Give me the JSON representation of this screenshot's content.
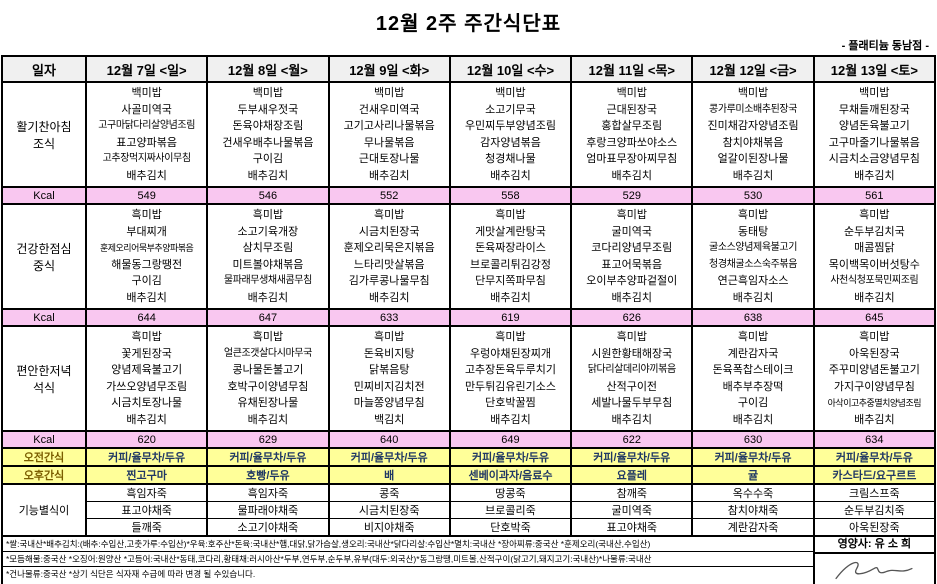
{
  "page": {
    "title": "12월 2주 주간식단표",
    "branch": "- 플래티늄 동남점 -"
  },
  "colors": {
    "kcal_bg": "#F9C7F0",
    "snack_bg": "#FFFF99",
    "header_bg": "#F0F0F0",
    "snack_label": "#7B5E00",
    "snack_value": "#203864"
  },
  "table": {
    "date_label": "일자",
    "kcal_label": "Kcal",
    "days": [
      "12월 7일 <일>",
      "12월 8일 <월>",
      "12월 9일 <화>",
      "12월 10일 <수>",
      "12월 11일 <목>",
      "12월 12일 <금>",
      "12월 13일 <토>"
    ],
    "meals": [
      {
        "label1": "활기찬아침",
        "label2": "조식",
        "menus": [
          [
            "백미밥",
            "사골미역국",
            "고구마닭다리살양념조림",
            "표고양파볶음",
            "고추장먹지짜사이무침",
            "배추김치"
          ],
          [
            "백미밥",
            "두부새우젓국",
            "돈육야채장조림",
            "건새우배추나물볶음",
            "구이김",
            "배추김치"
          ],
          [
            "백미밥",
            "건새우미역국",
            "고기고사리나물볶음",
            "무나물볶음",
            "근대토장나물",
            "배추김치"
          ],
          [
            "백미밥",
            "소고기무국",
            "우민찌두부양념조림",
            "감자양념볶음",
            "청경채나물",
            "배추김치"
          ],
          [
            "백미밥",
            "근대된장국",
            "홍합살무조림",
            "후랑크양파쏘야소스",
            "엄마표무장아찌무침",
            "배추김치"
          ],
          [
            "백미밥",
            "콩가루미소배추된장국",
            "진미채감자양념조림",
            "참치야채볶음",
            "얼갈이된장나물",
            "배추김치"
          ],
          [
            "백미밥",
            "무채들깨된장국",
            "양념돈육불고기",
            "고구마줄기나물볶음",
            "시금치소금양념무침",
            "배추김치"
          ]
        ],
        "kcals": [
          "549",
          "546",
          "552",
          "558",
          "529",
          "530",
          "561"
        ]
      },
      {
        "label1": "건강한점심",
        "label2": "중식",
        "menus": [
          [
            "흑미밥",
            "부대찌개",
            "훈제오리어묵부추양파볶음",
            "해물동그랑땡전",
            "구이김",
            "배추김치"
          ],
          [
            "흑미밥",
            "소고기육개장",
            "삼치무조림",
            "미트볼야채볶음",
            "물파래무생채새콤무침",
            "배추김치"
          ],
          [
            "흑미밥",
            "시금치된장국",
            "훈제오리묵은지볶음",
            "느타리맛살볶음",
            "김가루콩나물무침",
            "배추김치"
          ],
          [
            "흑미밥",
            "게맛살계란탕국",
            "돈육짜장라이스",
            "브로콜리튀김강정",
            "단무지쪽파무침",
            "배추김치"
          ],
          [
            "흑미밥",
            "굴미역국",
            "코다리양념무조림",
            "표고어묵볶음",
            "오이부추양파겉절이",
            "배추김치"
          ],
          [
            "흑미밥",
            "동태탕",
            "굴소스양념제육불고기",
            "청경채굴소스숙주볶음",
            "연근흑임자소스",
            "배추김치"
          ],
          [
            "흑미밥",
            "순두부김치국",
            "매콤찜닭",
            "목이백목이버섯탕수",
            "사천식청포묵민찌조림",
            "배추김치"
          ]
        ],
        "kcals": [
          "644",
          "647",
          "633",
          "619",
          "626",
          "638",
          "645"
        ]
      },
      {
        "label1": "편안한저녁",
        "label2": "석식",
        "menus": [
          [
            "흑미밥",
            "꽃게된장국",
            "양념제육불고기",
            "가쓰오양념무조림",
            "시금치토장나물",
            "배추김치"
          ],
          [
            "흑미밥",
            "얼큰조갯살다시마무국",
            "콩나물돈불고기",
            "호박구이양념무침",
            "유채된장나물",
            "배추김치"
          ],
          [
            "흑미밥",
            "돈육비지탕",
            "닭볶음탕",
            "민찌비지김치전",
            "마늘쫑양념무침",
            "백김치"
          ],
          [
            "흑미밥",
            "우렁야채된장찌개",
            "고추장돈육두루치기",
            "만두튀김유린기소스",
            "단호박꿀찜",
            "배추김치"
          ],
          [
            "흑미밥",
            "시원한황태해장국",
            "닭다리살데리야끼볶음",
            "산적구이전",
            "세발나물두부무침",
            "배추김치"
          ],
          [
            "흑미밥",
            "계란감자국",
            "돈육폭찹스테이크",
            "배추부추장떡",
            "구이김",
            "배추김치"
          ],
          [
            "흑미밥",
            "아욱된장국",
            "주꾸미양념돈불고기",
            "가지구이양념무침",
            "아삭이고추중멸치양념조림",
            "배추김치"
          ]
        ],
        "kcals": [
          "620",
          "629",
          "640",
          "649",
          "622",
          "630",
          "634"
        ]
      }
    ],
    "snacks": [
      {
        "label": "오전간식",
        "items": [
          "커피/율무차/두유",
          "커피/율무차/두유",
          "커피/율무차/두유",
          "커피/율무차/두유",
          "커피/율무차/두유",
          "커피/율무차/두유",
          "커피/율무차/두유"
        ]
      },
      {
        "label": "오후간식",
        "items": [
          "찐고구마",
          "호빵/두유",
          "배",
          "센베이과자/음료수",
          "요플레",
          "귤",
          "카스타드/요구르트"
        ]
      }
    ],
    "functional": {
      "label": "기능별식이",
      "rows": [
        [
          "흑임자죽",
          "흑임자죽",
          "콩죽",
          "땅콩죽",
          "참깨죽",
          "옥수수죽",
          "크림스프죽"
        ],
        [
          "표고야채죽",
          "물파래야채죽",
          "시금치된장죽",
          "브로콜리죽",
          "굴미역죽",
          "참치야채죽",
          "순두부김치죽"
        ],
        [
          "들깨죽",
          "소고기야채죽",
          "비지야채죽",
          "단호박죽",
          "표고야채죽",
          "계란감자죽",
          "아욱된장죽"
        ]
      ]
    },
    "nutritionist": "영양사: 유 소 희",
    "notes": [
      "*쌀:국내산*배추김치:(배추:수입산,고춧가루:수입산)*우육:호주산*돈육:국내산*햄,대닭,닭가슴살,생오리:국내산*닭다리살:수입산*멸치:국내산 *장아찌류:중국산 *훈제오리(국내산,수입산)",
      "*모듬해물:중국산 *오징어:원양산 *고등어:국내산*동태,코다리,황태채:러시아산*두부,연두부,순두부,유부(대두:외국산)*동그랑땡,미트볼,산적구이(닭고기,돼지고기:국내산)*나물류:국내산",
      "*건나물류:중국산  *상기 식단은 식자재 수급에 따라 변경 될 수있습니다."
    ]
  }
}
